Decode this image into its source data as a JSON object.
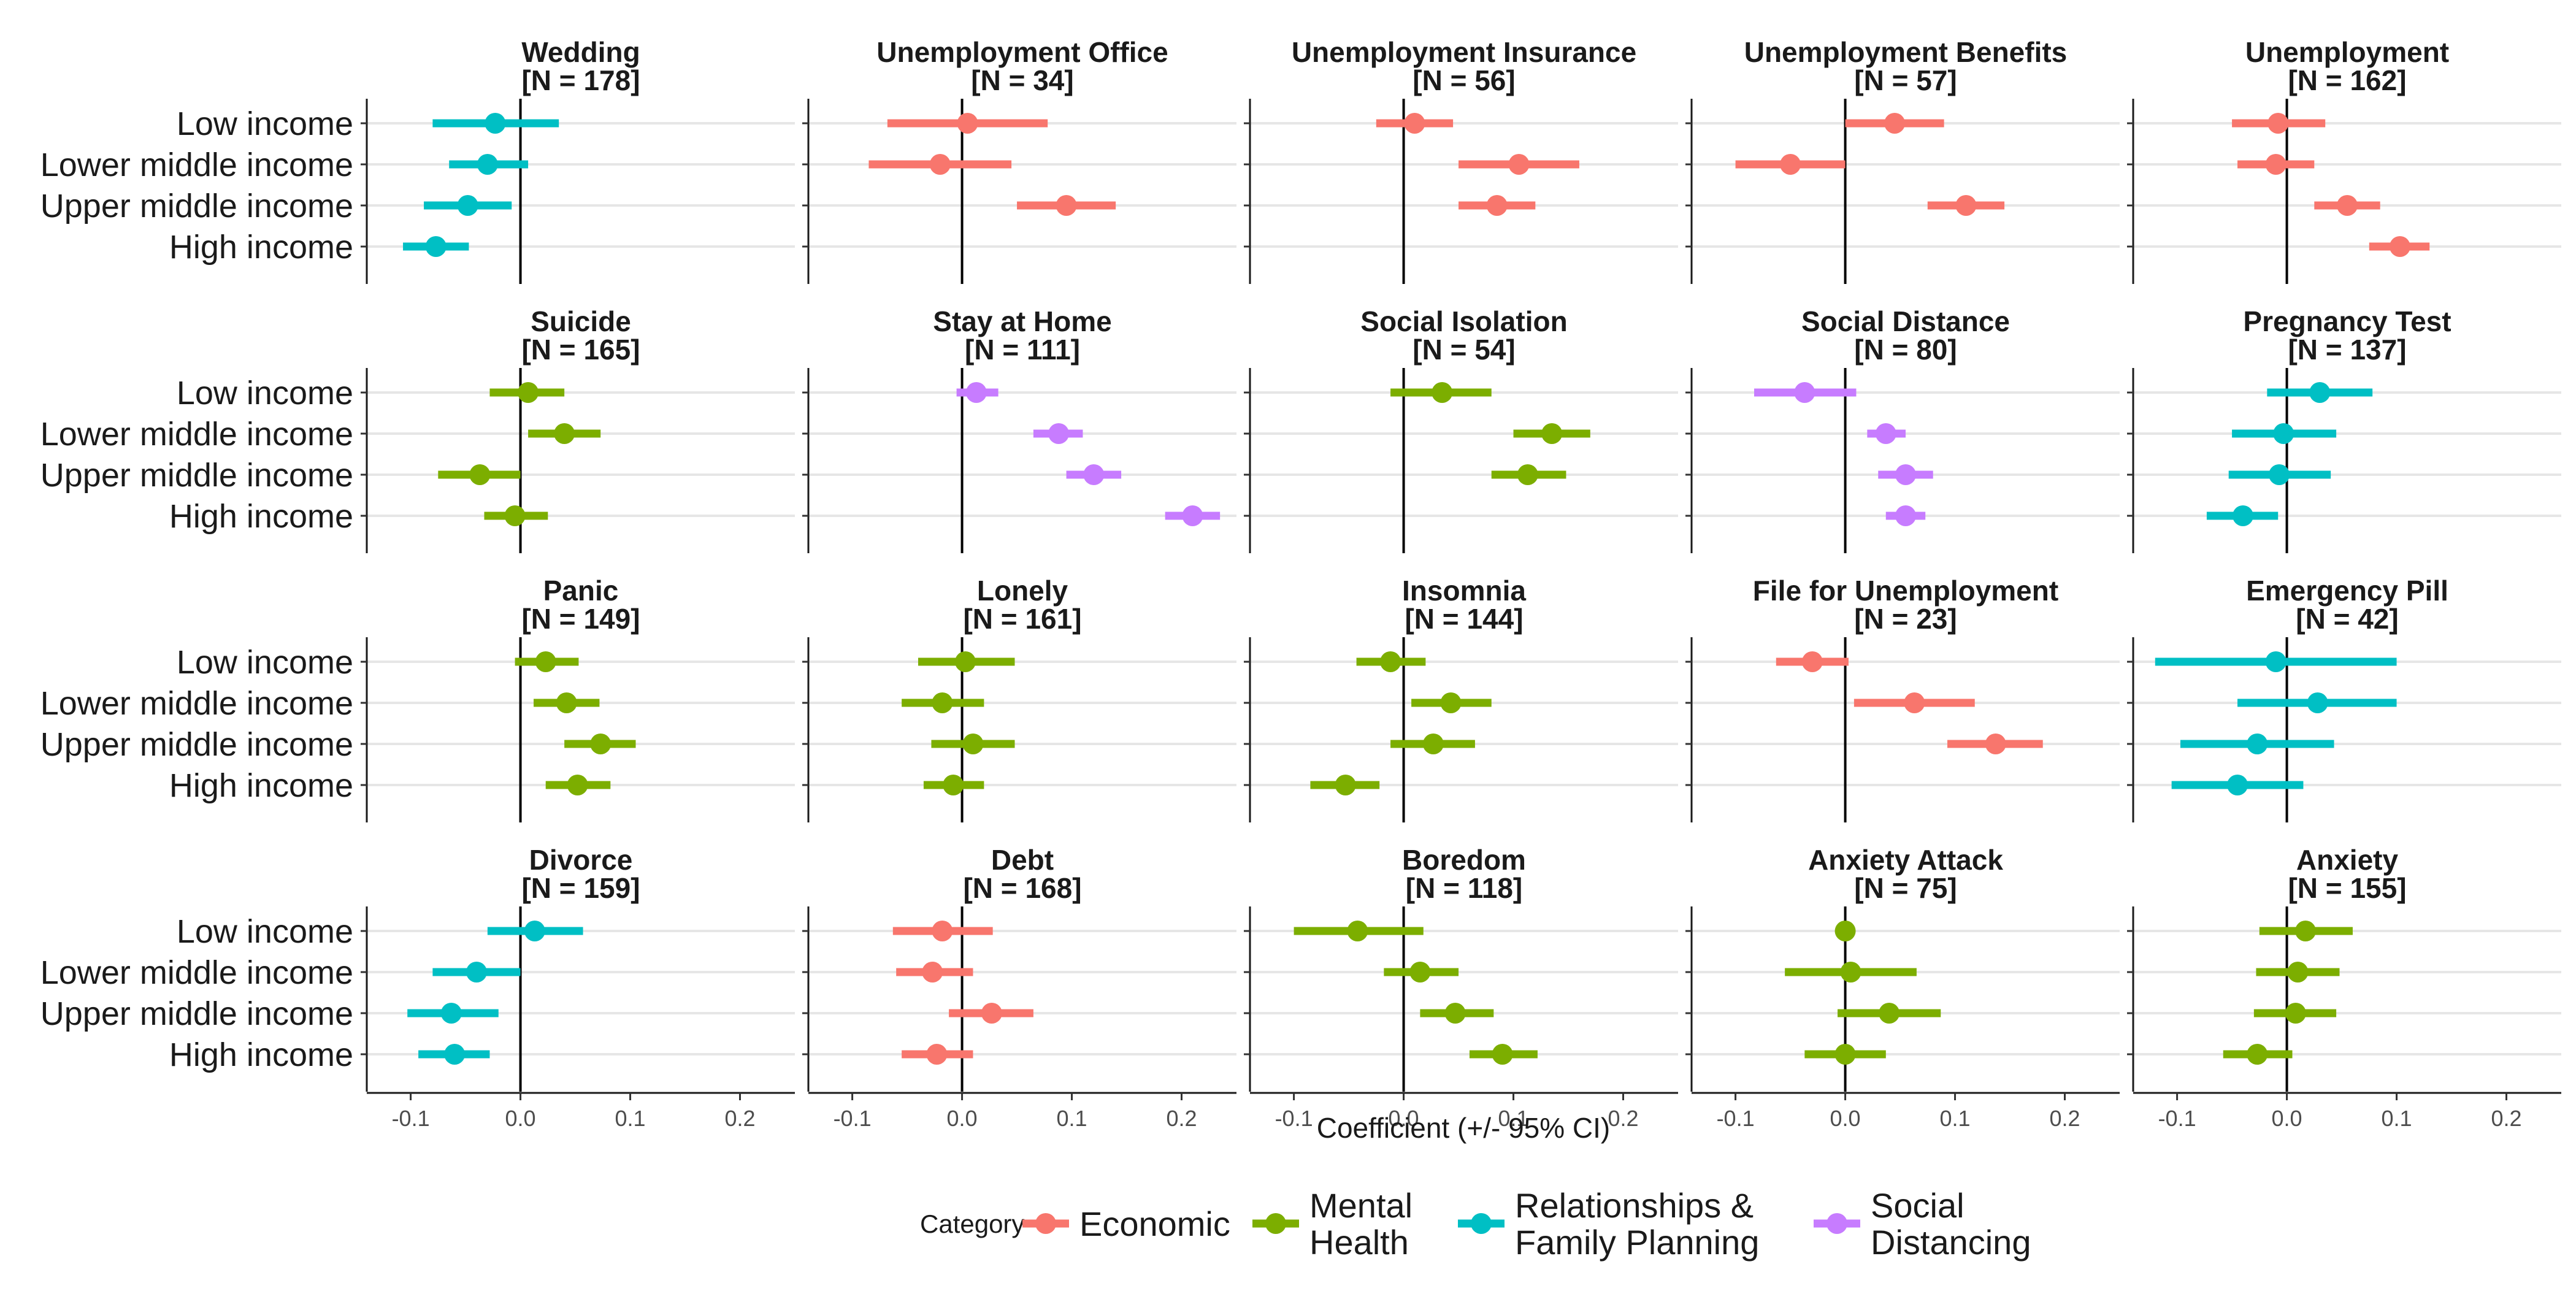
{
  "chart_data": {
    "type": "forest",
    "xlabel": "Coefficient (+/- 95% CI)",
    "xlim": [
      -0.14,
      0.25
    ],
    "xticks": [
      -0.1,
      0.0,
      0.1,
      0.2
    ],
    "xtick_labels": [
      "-0.1",
      "0.0",
      "0.1",
      "0.2"
    ],
    "groups": [
      "Low income",
      "Lower middle income",
      "Upper middle income",
      "High income"
    ],
    "legend": {
      "title": "Category",
      "position": "bottom",
      "items": [
        {
          "key": "Economic",
          "lines": [
            "Economic"
          ],
          "color": "#F8766D"
        },
        {
          "key": "Mental Health",
          "lines": [
            "Mental",
            "Health"
          ],
          "color": "#7CAE00"
        },
        {
          "key": "Relationships & Family Planning",
          "lines": [
            "Relationships &",
            "Family Planning"
          ],
          "color": "#00BFC4"
        },
        {
          "key": "Social Distancing",
          "lines": [
            "Social",
            "Distancing"
          ],
          "color": "#C77CFF"
        }
      ]
    },
    "panels": [
      {
        "title": "Wedding",
        "n_label": "[N = 178]",
        "category": "Relationships & Family Planning",
        "points": [
          {
            "est": -0.023,
            "lo": -0.08,
            "hi": 0.035
          },
          {
            "est": -0.03,
            "lo": -0.065,
            "hi": 0.007
          },
          {
            "est": -0.048,
            "lo": -0.088,
            "hi": -0.008
          },
          {
            "est": -0.077,
            "lo": -0.107,
            "hi": -0.047
          }
        ]
      },
      {
        "title": "Unemployment Office",
        "n_label": "[N = 34]",
        "category": "Economic",
        "points": [
          {
            "est": 0.005,
            "lo": -0.068,
            "hi": 0.078
          },
          {
            "est": -0.02,
            "lo": -0.085,
            "hi": 0.045
          },
          {
            "est": 0.095,
            "lo": 0.05,
            "hi": 0.14
          },
          null
        ]
      },
      {
        "title": "Unemployment Insurance",
        "n_label": "[N = 56]",
        "category": "Economic",
        "points": [
          {
            "est": 0.01,
            "lo": -0.025,
            "hi": 0.045
          },
          {
            "est": 0.105,
            "lo": 0.05,
            "hi": 0.16
          },
          {
            "est": 0.085,
            "lo": 0.05,
            "hi": 0.12
          },
          null
        ]
      },
      {
        "title": "Unemployment Benefits",
        "n_label": "[N = 57]",
        "category": "Economic",
        "points": [
          {
            "est": 0.045,
            "lo": 0.0,
            "hi": 0.09
          },
          {
            "est": -0.05,
            "lo": -0.1,
            "hi": 0.0
          },
          {
            "est": 0.11,
            "lo": 0.075,
            "hi": 0.145
          },
          null
        ]
      },
      {
        "title": "Unemployment",
        "n_label": "[N = 162]",
        "category": "Economic",
        "points": [
          {
            "est": -0.008,
            "lo": -0.05,
            "hi": 0.035
          },
          {
            "est": -0.01,
            "lo": -0.045,
            "hi": 0.025
          },
          {
            "est": 0.055,
            "lo": 0.025,
            "hi": 0.085
          },
          {
            "est": 0.103,
            "lo": 0.075,
            "hi": 0.13
          }
        ]
      },
      {
        "title": "Suicide",
        "n_label": "[N = 165]",
        "category": "Mental Health",
        "points": [
          {
            "est": 0.007,
            "lo": -0.028,
            "hi": 0.04
          },
          {
            "est": 0.04,
            "lo": 0.007,
            "hi": 0.073
          },
          {
            "est": -0.037,
            "lo": -0.075,
            "hi": 0.0
          },
          {
            "est": -0.005,
            "lo": -0.033,
            "hi": 0.025
          }
        ]
      },
      {
        "title": "Stay at Home",
        "n_label": "[N = 111]",
        "category": "Social Distancing",
        "points": [
          {
            "est": 0.013,
            "lo": -0.005,
            "hi": 0.033
          },
          {
            "est": 0.088,
            "lo": 0.065,
            "hi": 0.11
          },
          {
            "est": 0.12,
            "lo": 0.095,
            "hi": 0.145
          },
          {
            "est": 0.21,
            "lo": 0.185,
            "hi": 0.235
          }
        ]
      },
      {
        "title": "Social Isolation",
        "n_label": "[N = 54]",
        "category": "Mental Health",
        "points": [
          {
            "est": 0.035,
            "lo": -0.012,
            "hi": 0.08
          },
          {
            "est": 0.135,
            "lo": 0.1,
            "hi": 0.17
          },
          {
            "est": 0.113,
            "lo": 0.08,
            "hi": 0.148
          },
          null
        ]
      },
      {
        "title": "Social Distance",
        "n_label": "[N = 80]",
        "category": "Social Distancing",
        "points": [
          {
            "est": -0.037,
            "lo": -0.083,
            "hi": 0.01
          },
          {
            "est": 0.037,
            "lo": 0.02,
            "hi": 0.055
          },
          {
            "est": 0.055,
            "lo": 0.03,
            "hi": 0.08
          },
          {
            "est": 0.055,
            "lo": 0.037,
            "hi": 0.073
          }
        ]
      },
      {
        "title": "Pregnancy Test",
        "n_label": "[N = 137]",
        "category": "Relationships & Family Planning",
        "points": [
          {
            "est": 0.03,
            "lo": -0.018,
            "hi": 0.078
          },
          {
            "est": -0.003,
            "lo": -0.05,
            "hi": 0.045
          },
          {
            "est": -0.007,
            "lo": -0.053,
            "hi": 0.04
          },
          {
            "est": -0.04,
            "lo": -0.073,
            "hi": -0.008
          }
        ]
      },
      {
        "title": "Panic",
        "n_label": "[N = 149]",
        "category": "Mental Health",
        "points": [
          {
            "est": 0.023,
            "lo": -0.005,
            "hi": 0.053
          },
          {
            "est": 0.042,
            "lo": 0.012,
            "hi": 0.072
          },
          {
            "est": 0.073,
            "lo": 0.04,
            "hi": 0.105
          },
          {
            "est": 0.052,
            "lo": 0.023,
            "hi": 0.082
          }
        ]
      },
      {
        "title": "Lonely",
        "n_label": "[N = 161]",
        "category": "Mental Health",
        "points": [
          {
            "est": 0.003,
            "lo": -0.04,
            "hi": 0.048
          },
          {
            "est": -0.018,
            "lo": -0.055,
            "hi": 0.02
          },
          {
            "est": 0.01,
            "lo": -0.028,
            "hi": 0.048
          },
          {
            "est": -0.008,
            "lo": -0.035,
            "hi": 0.02
          }
        ]
      },
      {
        "title": "Insomnia",
        "n_label": "[N = 144]",
        "category": "Mental Health",
        "points": [
          {
            "est": -0.012,
            "lo": -0.043,
            "hi": 0.02
          },
          {
            "est": 0.043,
            "lo": 0.007,
            "hi": 0.08
          },
          {
            "est": 0.027,
            "lo": -0.012,
            "hi": 0.065
          },
          {
            "est": -0.053,
            "lo": -0.085,
            "hi": -0.022
          }
        ]
      },
      {
        "title": "File for Unemployment",
        "n_label": "[N = 23]",
        "category": "Economic",
        "points": [
          {
            "est": -0.03,
            "lo": -0.063,
            "hi": 0.003
          },
          {
            "est": 0.063,
            "lo": 0.008,
            "hi": 0.118
          },
          {
            "est": 0.137,
            "lo": 0.093,
            "hi": 0.18
          },
          null
        ]
      },
      {
        "title": "Emergency Pill",
        "n_label": "[N = 42]",
        "category": "Relationships & Family Planning",
        "points": [
          {
            "est": -0.01,
            "lo": -0.12,
            "hi": 0.1
          },
          {
            "est": 0.028,
            "lo": -0.045,
            "hi": 0.1
          },
          {
            "est": -0.027,
            "lo": -0.097,
            "hi": 0.043
          },
          {
            "est": -0.045,
            "lo": -0.105,
            "hi": 0.015
          }
        ]
      },
      {
        "title": "Divorce",
        "n_label": "[N = 159]",
        "category": "Relationships & Family Planning",
        "points": [
          {
            "est": 0.013,
            "lo": -0.03,
            "hi": 0.057
          },
          {
            "est": -0.04,
            "lo": -0.08,
            "hi": 0.0
          },
          {
            "est": -0.063,
            "lo": -0.103,
            "hi": -0.02
          },
          {
            "est": -0.06,
            "lo": -0.093,
            "hi": -0.028
          }
        ]
      },
      {
        "title": "Debt",
        "n_label": "[N = 168]",
        "category": "Economic",
        "points": [
          {
            "est": -0.018,
            "lo": -0.063,
            "hi": 0.028
          },
          {
            "est": -0.027,
            "lo": -0.06,
            "hi": 0.01
          },
          {
            "est": 0.027,
            "lo": -0.012,
            "hi": 0.065
          },
          {
            "est": -0.023,
            "lo": -0.055,
            "hi": 0.01
          }
        ]
      },
      {
        "title": "Boredom",
        "n_label": "[N = 118]",
        "category": "Mental Health",
        "points": [
          {
            "est": -0.042,
            "lo": -0.1,
            "hi": 0.018
          },
          {
            "est": 0.015,
            "lo": -0.018,
            "hi": 0.05
          },
          {
            "est": 0.047,
            "lo": 0.015,
            "hi": 0.082
          },
          {
            "est": 0.09,
            "lo": 0.06,
            "hi": 0.122
          }
        ]
      },
      {
        "title": "Anxiety Attack",
        "n_label": "[N = 75]",
        "category": "Mental Health",
        "points": [
          {
            "est": 0.0,
            "lo": 0.0,
            "hi": 0.0
          },
          {
            "est": 0.005,
            "lo": -0.055,
            "hi": 0.065
          },
          {
            "est": 0.04,
            "lo": -0.007,
            "hi": 0.087
          },
          {
            "est": 0.0,
            "lo": -0.037,
            "hi": 0.037
          }
        ]
      },
      {
        "title": "Anxiety",
        "n_label": "[N = 155]",
        "category": "Mental Health",
        "points": [
          {
            "est": 0.017,
            "lo": -0.025,
            "hi": 0.06
          },
          {
            "est": 0.01,
            "lo": -0.028,
            "hi": 0.048
          },
          {
            "est": 0.008,
            "lo": -0.03,
            "hi": 0.045
          },
          {
            "est": -0.027,
            "lo": -0.058,
            "hi": 0.005
          }
        ]
      }
    ]
  }
}
